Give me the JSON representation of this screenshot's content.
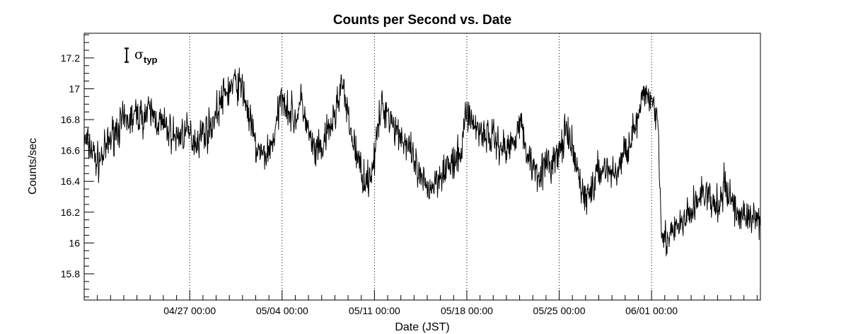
{
  "chart_data": {
    "type": "line",
    "title": "Counts per Second vs. Date",
    "xlabel": "Date (JST)",
    "ylabel": "Counts/sec",
    "x_range": [
      "2024-04-19 00:00",
      "2024-06-09 06:00"
    ],
    "ylim": [
      15.63,
      17.36
    ],
    "y_ticks": [
      15.8,
      16,
      16.2,
      16.4,
      16.6,
      16.8,
      17,
      17.2
    ],
    "y_tick_labels": [
      "15.8",
      "16",
      "16.2",
      "16.4",
      "16.6",
      "16.8",
      "17",
      "17.2"
    ],
    "x_ticks": [
      "2024-04-27 00:00",
      "2024-05-04 00:00",
      "2024-05-11 00:00",
      "2024-05-18 00:00",
      "2024-05-25 00:00",
      "2024-06-01 00:00"
    ],
    "x_tick_labels": [
      "04/27 00:00",
      "05/04 00:00",
      "05/11 00:00",
      "05/18 00:00",
      "05/25 00:00",
      "06/01 00:00"
    ],
    "vertical_gridlines": "dotted at major date ticks",
    "annotation": {
      "symbol": "σ",
      "subscript": "typ",
      "meaning": "typical error bar",
      "half_height": 0.045
    },
    "series": [
      {
        "color": "#000000",
        "points": [
          [
            "2024-04-19 00:00",
            16.66
          ],
          [
            "2024-04-19 12:00",
            16.62
          ],
          [
            "2024-04-20 00:00",
            16.52
          ],
          [
            "2024-04-20 12:00",
            16.58
          ],
          [
            "2024-04-21 00:00",
            16.68
          ],
          [
            "2024-04-21 12:00",
            16.75
          ],
          [
            "2024-04-22 00:00",
            16.78
          ],
          [
            "2024-04-22 12:00",
            16.8
          ],
          [
            "2024-04-23 00:00",
            16.83
          ],
          [
            "2024-04-23 12:00",
            16.82
          ],
          [
            "2024-04-24 00:00",
            16.85
          ],
          [
            "2024-04-24 12:00",
            16.8
          ],
          [
            "2024-04-25 00:00",
            16.76
          ],
          [
            "2024-04-25 12:00",
            16.72
          ],
          [
            "2024-04-26 00:00",
            16.68
          ],
          [
            "2024-04-26 12:00",
            16.72
          ],
          [
            "2024-04-27 00:00",
            16.7
          ],
          [
            "2024-04-27 12:00",
            16.66
          ],
          [
            "2024-04-28 00:00",
            16.72
          ],
          [
            "2024-04-28 12:00",
            16.74
          ],
          [
            "2024-04-29 00:00",
            16.84
          ],
          [
            "2024-04-29 12:00",
            16.94
          ],
          [
            "2024-04-30 00:00",
            17.0
          ],
          [
            "2024-04-30 12:00",
            17.04
          ],
          [
            "2024-05-01 00:00",
            17.0
          ],
          [
            "2024-05-01 12:00",
            16.82
          ],
          [
            "2024-05-02 00:00",
            16.62
          ],
          [
            "2024-05-02 12:00",
            16.56
          ],
          [
            "2024-05-03 00:00",
            16.6
          ],
          [
            "2024-05-03 12:00",
            16.72
          ],
          [
            "2024-05-04 00:00",
            16.98
          ],
          [
            "2024-05-04 12:00",
            16.86
          ],
          [
            "2024-05-05 00:00",
            16.8
          ],
          [
            "2024-05-05 12:00",
            16.92
          ],
          [
            "2024-05-06 00:00",
            16.7
          ],
          [
            "2024-05-06 12:00",
            16.58
          ],
          [
            "2024-05-07 00:00",
            16.6
          ],
          [
            "2024-05-07 12:00",
            16.72
          ],
          [
            "2024-05-08 00:00",
            16.82
          ],
          [
            "2024-05-08 12:00",
            17.05
          ],
          [
            "2024-05-09 00:00",
            16.8
          ],
          [
            "2024-05-09 12:00",
            16.62
          ],
          [
            "2024-05-10 00:00",
            16.46
          ],
          [
            "2024-05-10 12:00",
            16.4
          ],
          [
            "2024-05-11 00:00",
            16.55
          ],
          [
            "2024-05-11 12:00",
            16.88
          ],
          [
            "2024-05-12 00:00",
            16.86
          ],
          [
            "2024-05-12 12:00",
            16.76
          ],
          [
            "2024-05-13 00:00",
            16.7
          ],
          [
            "2024-05-13 12:00",
            16.62
          ],
          [
            "2024-05-14 00:00",
            16.52
          ],
          [
            "2024-05-14 12:00",
            16.4
          ],
          [
            "2024-05-15 00:00",
            16.36
          ],
          [
            "2024-05-15 12:00",
            16.38
          ],
          [
            "2024-05-16 00:00",
            16.46
          ],
          [
            "2024-05-16 12:00",
            16.5
          ],
          [
            "2024-05-17 00:00",
            16.5
          ],
          [
            "2024-05-17 12:00",
            16.56
          ],
          [
            "2024-05-18 00:00",
            16.88
          ],
          [
            "2024-05-18 12:00",
            16.76
          ],
          [
            "2024-05-19 00:00",
            16.74
          ],
          [
            "2024-05-19 12:00",
            16.7
          ],
          [
            "2024-05-20 00:00",
            16.68
          ],
          [
            "2024-05-20 12:00",
            16.64
          ],
          [
            "2024-05-21 00:00",
            16.6
          ],
          [
            "2024-05-21 12:00",
            16.66
          ],
          [
            "2024-05-22 00:00",
            16.8
          ],
          [
            "2024-05-22 12:00",
            16.6
          ],
          [
            "2024-05-23 00:00",
            16.5
          ],
          [
            "2024-05-23 12:00",
            16.46
          ],
          [
            "2024-05-24 00:00",
            16.5
          ],
          [
            "2024-05-24 12:00",
            16.52
          ],
          [
            "2024-05-25 00:00",
            16.58
          ],
          [
            "2024-05-25 12:00",
            16.72
          ],
          [
            "2024-05-26 00:00",
            16.6
          ],
          [
            "2024-05-26 12:00",
            16.42
          ],
          [
            "2024-05-27 00:00",
            16.28
          ],
          [
            "2024-05-27 12:00",
            16.36
          ],
          [
            "2024-05-28 00:00",
            16.46
          ],
          [
            "2024-05-28 12:00",
            16.5
          ],
          [
            "2024-05-29 00:00",
            16.44
          ],
          [
            "2024-05-29 12:00",
            16.48
          ],
          [
            "2024-05-30 00:00",
            16.6
          ],
          [
            "2024-05-30 12:00",
            16.7
          ],
          [
            "2024-05-31 00:00",
            16.8
          ],
          [
            "2024-05-31 12:00",
            16.98
          ],
          [
            "2024-06-01 00:00",
            16.94
          ],
          [
            "2024-06-01 12:00",
            16.8
          ],
          [
            "2024-06-01 18:00",
            16.1
          ],
          [
            "2024-06-02 00:00",
            16.02
          ],
          [
            "2024-06-02 12:00",
            16.04
          ],
          [
            "2024-06-03 00:00",
            16.1
          ],
          [
            "2024-06-03 12:00",
            16.14
          ],
          [
            "2024-06-04 00:00",
            16.2
          ],
          [
            "2024-06-04 12:00",
            16.28
          ],
          [
            "2024-06-05 00:00",
            16.34
          ],
          [
            "2024-06-05 12:00",
            16.26
          ],
          [
            "2024-06-06 00:00",
            16.22
          ],
          [
            "2024-06-06 12:00",
            16.36
          ],
          [
            "2024-06-07 00:00",
            16.3
          ],
          [
            "2024-06-07 12:00",
            16.18
          ],
          [
            "2024-06-08 00:00",
            16.2
          ],
          [
            "2024-06-08 12:00",
            16.14
          ],
          [
            "2024-06-09 06:00",
            16.18
          ]
        ]
      }
    ]
  }
}
